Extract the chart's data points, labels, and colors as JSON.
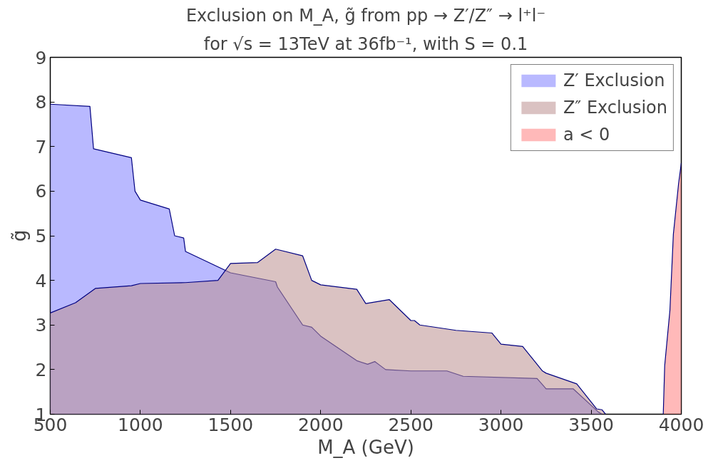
{
  "chart_data": {
    "type": "area",
    "title": "Exclusion on M_A, g̃ from pp → Z′/Z″ → l⁺l⁻",
    "subtitle": "for √s = 13TeV at 36fb⁻¹, with S = 0.1",
    "xlabel": "M_A (GeV)",
    "ylabel": "g̃",
    "xlim": [
      500,
      4000
    ],
    "ylim": [
      1,
      9
    ],
    "xticks": [
      500,
      1000,
      1500,
      2000,
      2500,
      3000,
      3500,
      4000
    ],
    "yticks": [
      1,
      2,
      3,
      4,
      5,
      6,
      7,
      8,
      9
    ],
    "grid": false,
    "legend": "top right",
    "series": [
      {
        "name": "Z′ Exclusion",
        "color": "#8080ff",
        "x": [
          500,
          720,
          740,
          950,
          970,
          1000,
          1160,
          1190,
          1240,
          1250,
          1500,
          1750,
          1760,
          1900,
          1950,
          2000,
          2200,
          2260,
          2300,
          2360,
          2500,
          2700,
          2790,
          3200,
          3250,
          3400,
          3540,
          3560
        ],
        "values": [
          7.95,
          7.9,
          6.95,
          6.75,
          6.0,
          5.8,
          5.6,
          5.0,
          4.95,
          4.65,
          4.17,
          3.97,
          3.85,
          3.0,
          2.95,
          2.75,
          2.2,
          2.12,
          2.18,
          2.0,
          1.97,
          1.97,
          1.85,
          1.8,
          1.57,
          1.57,
          1.05,
          1.0
        ]
      },
      {
        "name": "Z″ Exclusion",
        "color": "#bc8f8f",
        "x": [
          500,
          640,
          750,
          950,
          1000,
          1250,
          1430,
          1500,
          1650,
          1750,
          1900,
          1950,
          2000,
          2200,
          2250,
          2380,
          2500,
          2520,
          2550,
          2750,
          2950,
          3000,
          3120,
          3230,
          3250,
          3420,
          3530,
          3560,
          3580
        ],
        "values": [
          3.27,
          3.5,
          3.82,
          3.88,
          3.93,
          3.95,
          4.0,
          4.38,
          4.4,
          4.7,
          4.55,
          4.0,
          3.9,
          3.8,
          3.48,
          3.57,
          3.1,
          3.1,
          3.0,
          2.88,
          2.82,
          2.57,
          2.52,
          1.97,
          1.92,
          1.68,
          1.12,
          1.1,
          1.0
        ]
      },
      {
        "name": "a < 0",
        "color": "#ff8080",
        "x": [
          3900,
          3908,
          3937,
          3956,
          3985,
          4000
        ],
        "values": [
          1.0,
          2.09,
          3.33,
          5.03,
          6.17,
          6.63
        ]
      }
    ]
  }
}
